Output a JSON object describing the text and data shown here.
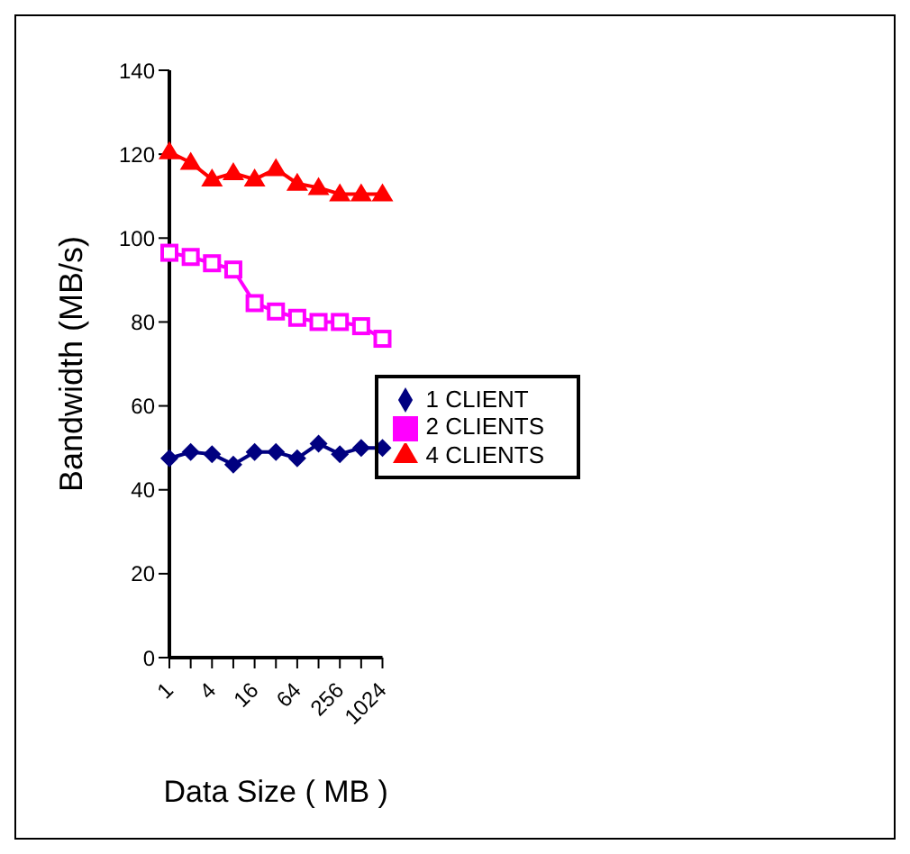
{
  "chart_data": {
    "type": "line",
    "xlabel": "Data Size ( MB )",
    "ylabel": "Bandwidth (MB/s)",
    "categories": [
      "1",
      null,
      "4",
      null,
      "16",
      null,
      "64",
      null,
      "256",
      null,
      "1024"
    ],
    "ylim": [
      0,
      140
    ],
    "yticks": [
      0,
      20,
      40,
      60,
      80,
      100,
      120,
      140
    ],
    "grid": false,
    "legend": "right",
    "series": [
      {
        "name": "1 CLIENT",
        "color": "#000080",
        "marker": "diamond",
        "values": [
          47.5,
          49,
          48.5,
          46,
          49,
          49,
          47.5,
          51,
          48.5,
          50,
          50
        ]
      },
      {
        "name": "2 CLIENTS",
        "color": "#ff00ff",
        "marker": "square",
        "values": [
          96.5,
          95.5,
          94,
          92.5,
          84.5,
          82.5,
          81,
          80,
          80,
          79,
          76
        ]
      },
      {
        "name": "4 CLIENTS",
        "color": "#ff0000",
        "marker": "triangle",
        "values": [
          120.5,
          118,
          114,
          115.5,
          114,
          116.5,
          113,
          112,
          110.5,
          110.5,
          110.5
        ]
      }
    ]
  }
}
